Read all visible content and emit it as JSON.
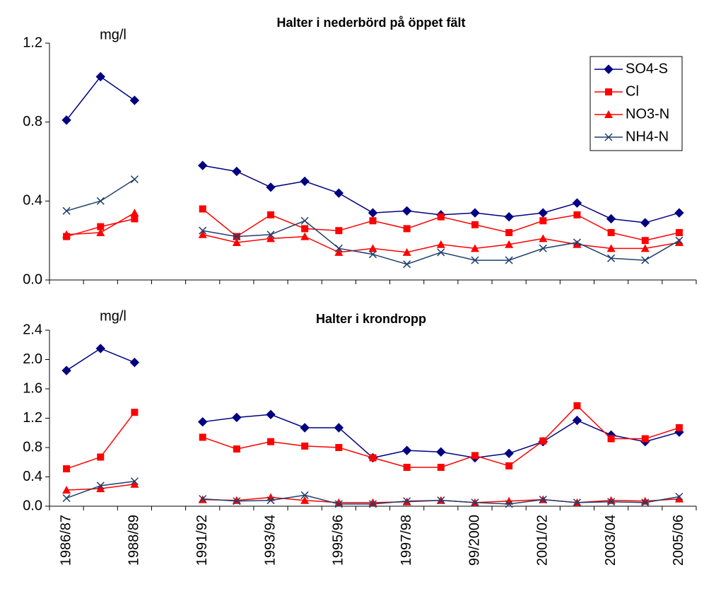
{
  "chart_data": [
    {
      "type": "line",
      "title": "Halter i nederbörd på  öppet fält",
      "y_unit": "mg/l",
      "ylim": [
        0,
        1.2
      ],
      "yticks": [
        {
          "value": 0,
          "label": "0.0"
        },
        0.4,
        0.8,
        {
          "value": 1.2,
          "label": "1.2"
        }
      ],
      "legend": "top-right",
      "series": [
        {
          "name": "SO4-S",
          "color": "#000080",
          "marker": "diamond",
          "values": [
            0.81,
            1.03,
            0.91,
            null,
            0.58,
            0.55,
            0.47,
            0.5,
            0.44,
            0.34,
            0.35,
            0.33,
            0.34,
            0.32,
            0.34,
            0.39,
            0.31,
            0.29,
            0.34
          ]
        },
        {
          "name": "Cl",
          "color": "#ff0000",
          "marker": "square",
          "values": [
            0.22,
            0.27,
            0.31,
            null,
            0.36,
            0.22,
            0.33,
            0.26,
            0.25,
            0.3,
            0.26,
            0.32,
            0.28,
            0.24,
            0.3,
            0.33,
            0.24,
            0.2,
            0.24
          ]
        },
        {
          "name": "NO3-N",
          "color": "#ff0000",
          "marker": "triangle",
          "values": [
            0.23,
            0.24,
            0.34,
            null,
            0.23,
            0.19,
            0.21,
            0.22,
            0.14,
            0.16,
            0.14,
            0.18,
            0.16,
            0.18,
            0.21,
            0.18,
            0.16,
            0.16,
            0.19
          ]
        },
        {
          "name": "NH4-N",
          "color": "#1f3f6e",
          "marker": "x",
          "values": [
            0.35,
            0.4,
            0.51,
            null,
            0.25,
            0.22,
            0.23,
            0.3,
            0.16,
            0.13,
            0.08,
            0.14,
            0.1,
            0.1,
            0.16,
            0.19,
            0.11,
            0.1,
            0.2
          ]
        }
      ]
    },
    {
      "type": "line",
      "title": "Halter i  krondropp",
      "y_unit": "mg/l",
      "categories": [
        "1986/87",
        null,
        "1988/89",
        null,
        "1991/92",
        null,
        "1993/94",
        null,
        "1995/96",
        null,
        "1997/98",
        null,
        "99/2000",
        null,
        "2001/02",
        null,
        "2003/04",
        null,
        "2005/06"
      ],
      "ylim": [
        0,
        2.4
      ],
      "yticks": [
        {
          "value": 0,
          "label": "0.0"
        },
        0.4,
        0.8,
        1.2,
        1.6,
        {
          "value": 2.0,
          "label": "2.0"
        },
        2.4
      ],
      "series": [
        {
          "name": "SO4-S",
          "color": "#000080",
          "marker": "diamond",
          "values": [
            1.85,
            2.15,
            1.96,
            null,
            1.15,
            1.21,
            1.25,
            1.07,
            1.07,
            0.66,
            0.76,
            0.74,
            0.66,
            0.72,
            0.88,
            1.17,
            0.97,
            0.88,
            1.01
          ]
        },
        {
          "name": "Cl",
          "color": "#ff0000",
          "marker": "square",
          "values": [
            0.51,
            0.67,
            1.28,
            null,
            0.94,
            0.78,
            0.88,
            0.82,
            0.8,
            0.66,
            0.53,
            0.53,
            0.69,
            0.55,
            0.89,
            1.37,
            0.92,
            0.92,
            1.07
          ]
        },
        {
          "name": "NO3-N",
          "color": "#ff0000",
          "marker": "triangle",
          "values": [
            0.22,
            0.24,
            0.3,
            null,
            0.09,
            0.08,
            0.12,
            0.08,
            0.05,
            0.05,
            0.06,
            0.08,
            0.05,
            0.07,
            0.09,
            0.05,
            0.08,
            0.07,
            0.1
          ]
        },
        {
          "name": "NH4-N",
          "color": "#1f3f6e",
          "marker": "x",
          "values": [
            0.11,
            0.28,
            0.34,
            null,
            0.1,
            0.07,
            0.08,
            0.15,
            0.03,
            0.03,
            0.07,
            0.08,
            0.05,
            0.03,
            0.09,
            0.05,
            0.06,
            0.05,
            0.13
          ]
        }
      ]
    }
  ]
}
